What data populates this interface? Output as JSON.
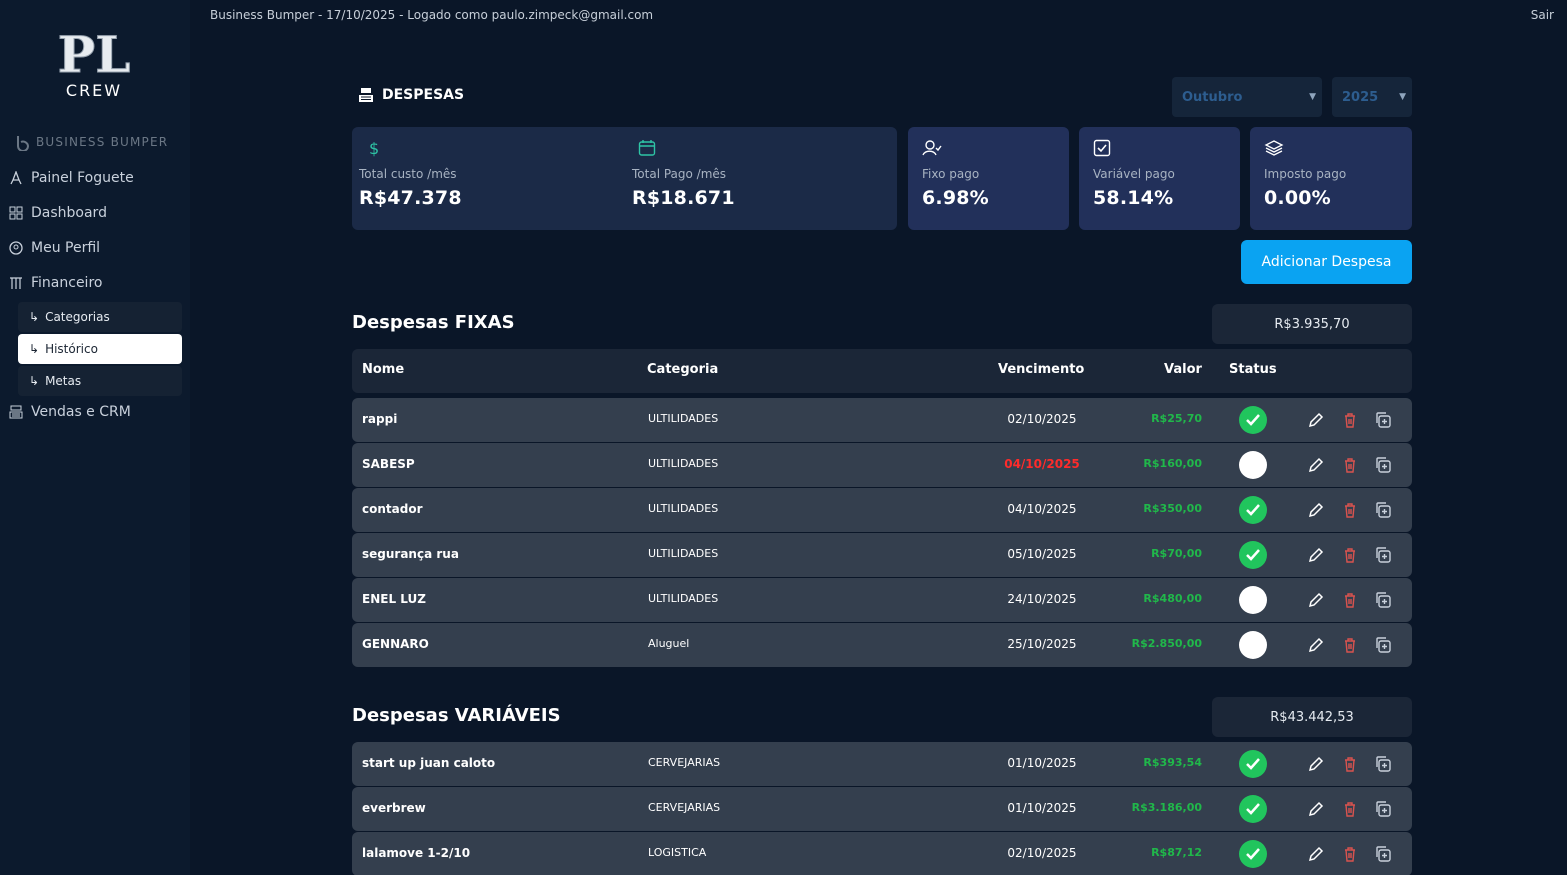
{
  "app": {
    "header_text": "Business Bumper - 17/10/2025 - Logado como paulo.zimpeck@gmail.com",
    "logout": "Sair",
    "logo_text": "CREW",
    "logo_monogram": "PL",
    "brand": "BUSINESS BUMPER"
  },
  "sidebar": {
    "items": [
      {
        "label": "Painel Foguete",
        "icon": "rocket-icon"
      },
      {
        "label": "Dashboard",
        "icon": "grid-icon"
      },
      {
        "label": "Meu Perfil",
        "icon": "user-circle-icon"
      },
      {
        "label": "Financeiro",
        "icon": "columns-icon"
      },
      {
        "label": "Vendas e CRM",
        "icon": "cash-register-icon"
      }
    ],
    "sub_items": [
      {
        "label": "Categorias",
        "active": false
      },
      {
        "label": "Histórico",
        "active": true
      },
      {
        "label": "Metas",
        "active": false
      }
    ]
  },
  "page": {
    "title": "DESPESAS",
    "month": "Outubro",
    "year": "2025",
    "add_button": "Adicionar Despesa"
  },
  "stats": {
    "total_custo": {
      "label": "Total custo /mês",
      "value": "R$47.378"
    },
    "total_pago": {
      "label": "Total Pago /mês",
      "value": "R$18.671"
    },
    "fixo_pago": {
      "label": "Fixo pago",
      "value": "6.98%"
    },
    "variavel_pago": {
      "label": "Variável pago",
      "value": "58.14%"
    },
    "imposto_pago": {
      "label": "Imposto pago",
      "value": "0.00%"
    }
  },
  "table_headers": {
    "nome": "Nome",
    "categoria": "Categoria",
    "vencimento": "Vencimento",
    "valor": "Valor",
    "status": "Status"
  },
  "fixas": {
    "title": "Despesas FIXAS",
    "total": "R$3.935,70",
    "rows": [
      {
        "nome": "rappi",
        "categoria": "ULTILIDADES",
        "vencimento": "02/10/2025",
        "valor": "R$25,70",
        "pago": true,
        "atrasado": false
      },
      {
        "nome": "SABESP",
        "categoria": "ULTILIDADES",
        "vencimento": "04/10/2025",
        "valor": "R$160,00",
        "pago": false,
        "atrasado": true
      },
      {
        "nome": "contador",
        "categoria": "ULTILIDADES",
        "vencimento": "04/10/2025",
        "valor": "R$350,00",
        "pago": true,
        "atrasado": false
      },
      {
        "nome": "segurança rua",
        "categoria": "ULTILIDADES",
        "vencimento": "05/10/2025",
        "valor": "R$70,00",
        "pago": true,
        "atrasado": false
      },
      {
        "nome": "ENEL LUZ",
        "categoria": "ULTILIDADES",
        "vencimento": "24/10/2025",
        "valor": "R$480,00",
        "pago": false,
        "atrasado": false
      },
      {
        "nome": "GENNARO",
        "categoria": "Aluguel",
        "vencimento": "25/10/2025",
        "valor": "R$2.850,00",
        "pago": false,
        "atrasado": false
      }
    ]
  },
  "variaveis": {
    "title": "Despesas VARIÁVEIS",
    "total": "R$43.442,53",
    "rows": [
      {
        "nome": "start up juan caloto",
        "categoria": "CERVEJARIAS",
        "vencimento": "01/10/2025",
        "valor": "R$393,54",
        "pago": true,
        "atrasado": false
      },
      {
        "nome": "everbrew",
        "categoria": "CERVEJARIAS",
        "vencimento": "01/10/2025",
        "valor": "R$3.186,00",
        "pago": true,
        "atrasado": false
      },
      {
        "nome": "lalamove 1-2/10",
        "categoria": "LOGISTICA",
        "vencimento": "02/10/2025",
        "valor": "R$87,12",
        "pago": true,
        "atrasado": false
      }
    ]
  },
  "colors": {
    "background": "#0a1628",
    "sidebar": "#0c1a2d",
    "accent": "#0aa3f2",
    "paid_green": "#21c55d",
    "late_red": "#ff2b2b",
    "delete_red": "#d9534f"
  }
}
